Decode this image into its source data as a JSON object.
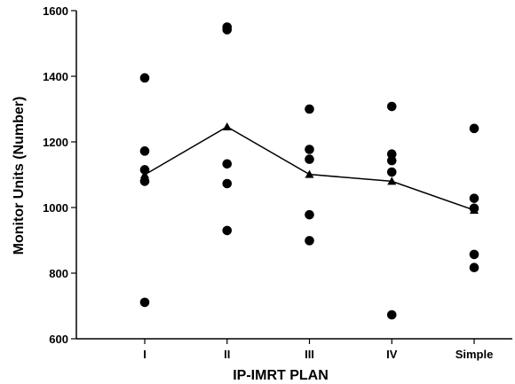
{
  "chart_data": {
    "type": "scatter",
    "xlabel": "IP-IMRT PLAN",
    "ylabel": "Monitor Units (Number)",
    "ylim": [
      600,
      1600
    ],
    "yticks": [
      600,
      800,
      1000,
      1200,
      1400,
      1600
    ],
    "categories": [
      "I",
      "II",
      "III",
      "IV",
      "Simple"
    ],
    "grid": false,
    "series": [
      {
        "mark": "circle",
        "points": [
          {
            "x": "I",
            "y": 1395
          },
          {
            "x": "I",
            "y": 1172
          },
          {
            "x": "I",
            "y": 1115
          },
          {
            "x": "I",
            "y": 1080
          },
          {
            "x": "I",
            "y": 711
          },
          {
            "x": "II",
            "y": 1550
          },
          {
            "x": "II",
            "y": 1542
          },
          {
            "x": "II",
            "y": 1133
          },
          {
            "x": "II",
            "y": 1073
          },
          {
            "x": "II",
            "y": 930
          },
          {
            "x": "III",
            "y": 1300
          },
          {
            "x": "III",
            "y": 1177
          },
          {
            "x": "III",
            "y": 1147
          },
          {
            "x": "III",
            "y": 978
          },
          {
            "x": "III",
            "y": 899
          },
          {
            "x": "IV",
            "y": 1308
          },
          {
            "x": "IV",
            "y": 1163
          },
          {
            "x": "IV",
            "y": 1143
          },
          {
            "x": "IV",
            "y": 1108
          },
          {
            "x": "IV",
            "y": 673
          },
          {
            "x": "Simple",
            "y": 1241
          },
          {
            "x": "Simple",
            "y": 1028
          },
          {
            "x": "Simple",
            "y": 998
          },
          {
            "x": "Simple",
            "y": 857
          },
          {
            "x": "Simple",
            "y": 817
          }
        ]
      },
      {
        "mark": "triangle-line",
        "values": [
          1100,
          1246,
          1101,
          1080,
          992
        ]
      }
    ],
    "color": "#000000"
  }
}
